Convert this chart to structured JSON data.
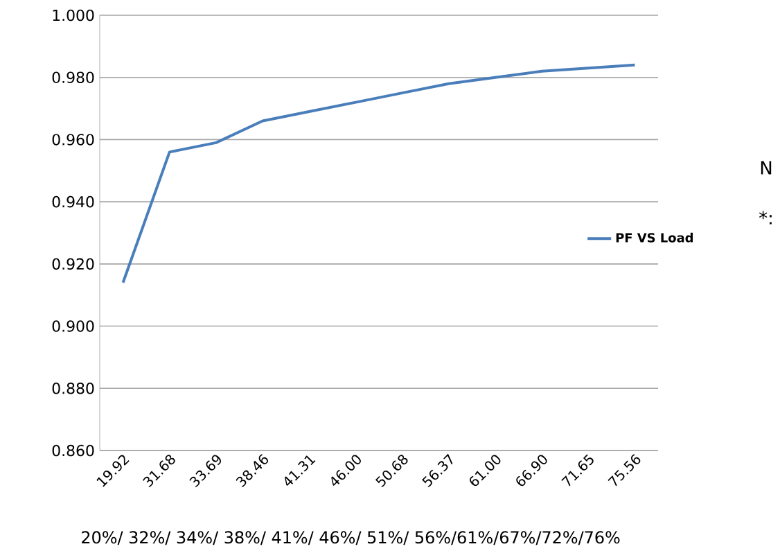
{
  "chart_data": {
    "type": "line",
    "xlabel": "20%/ 32%/ 34%/ 38%/ 41%/ 46%/ 51%/ 56%/61%/67%/72%/76%",
    "categories": [
      "19.92",
      "31.68",
      "33.69",
      "38.46",
      "41.31",
      "46.00",
      "50.68",
      "56.37",
      "61.00",
      "66.90",
      "71.65",
      "75.56"
    ],
    "series": [
      {
        "name": "PF VS Load",
        "color": "#4a7ebb",
        "values": [
          0.914,
          0.956,
          0.959,
          0.966,
          0.969,
          0.972,
          0.975,
          0.978,
          0.98,
          0.982,
          0.983,
          0.984
        ]
      }
    ],
    "ylim": [
      0.86,
      1.0
    ],
    "yticks": [
      {
        "value": 0.86,
        "label": "0.860"
      },
      {
        "value": 0.88,
        "label": "0.880"
      },
      {
        "value": 0.9,
        "label": "0.900"
      },
      {
        "value": 0.92,
        "label": "0.920"
      },
      {
        "value": 0.94,
        "label": "0.940"
      },
      {
        "value": 0.96,
        "label": "0.960"
      },
      {
        "value": 0.98,
        "label": "0.980"
      },
      {
        "value": 1.0,
        "label": "1.000"
      }
    ],
    "grid": "y",
    "legend": "right",
    "marker": "none",
    "line_style": "solid",
    "annotations": [
      "N",
      "*:"
    ]
  }
}
